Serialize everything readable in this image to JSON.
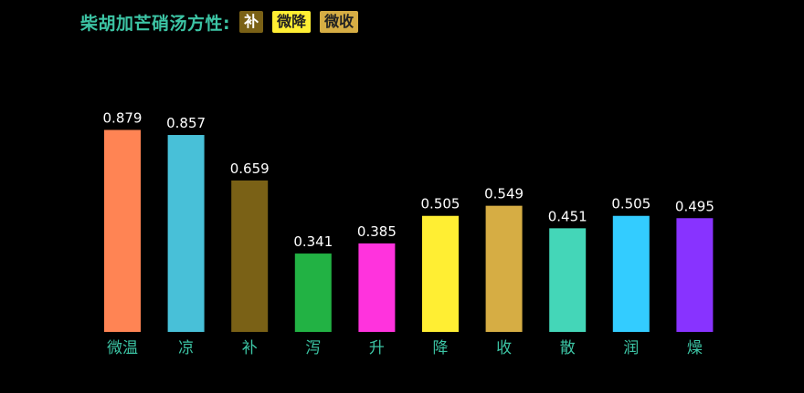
{
  "header": {
    "title": "柴胡加芒硝汤方性:",
    "tags": [
      {
        "label": "补",
        "bg": "#7a6116",
        "fg": "#ffffff"
      },
      {
        "label": "微降",
        "bg": "#ffee33",
        "fg": "#222222"
      },
      {
        "label": "微收",
        "bg": "#d6ad44",
        "fg": "#222222"
      }
    ]
  },
  "chart_data": {
    "type": "bar",
    "categories": [
      "微温",
      "凉",
      "补",
      "泻",
      "升",
      "降",
      "收",
      "散",
      "润",
      "燥"
    ],
    "values": [
      0.879,
      0.857,
      0.659,
      0.341,
      0.385,
      0.505,
      0.549,
      0.451,
      0.505,
      0.495
    ],
    "colors": [
      "#ff8454",
      "#48c0d8",
      "#7a6116",
      "#22b244",
      "#ff33dd",
      "#ffee33",
      "#d6ad44",
      "#44d6b8",
      "#33ccff",
      "#8833ff"
    ],
    "ylim": [
      0,
      1
    ],
    "grid": false,
    "data_labels": true
  }
}
